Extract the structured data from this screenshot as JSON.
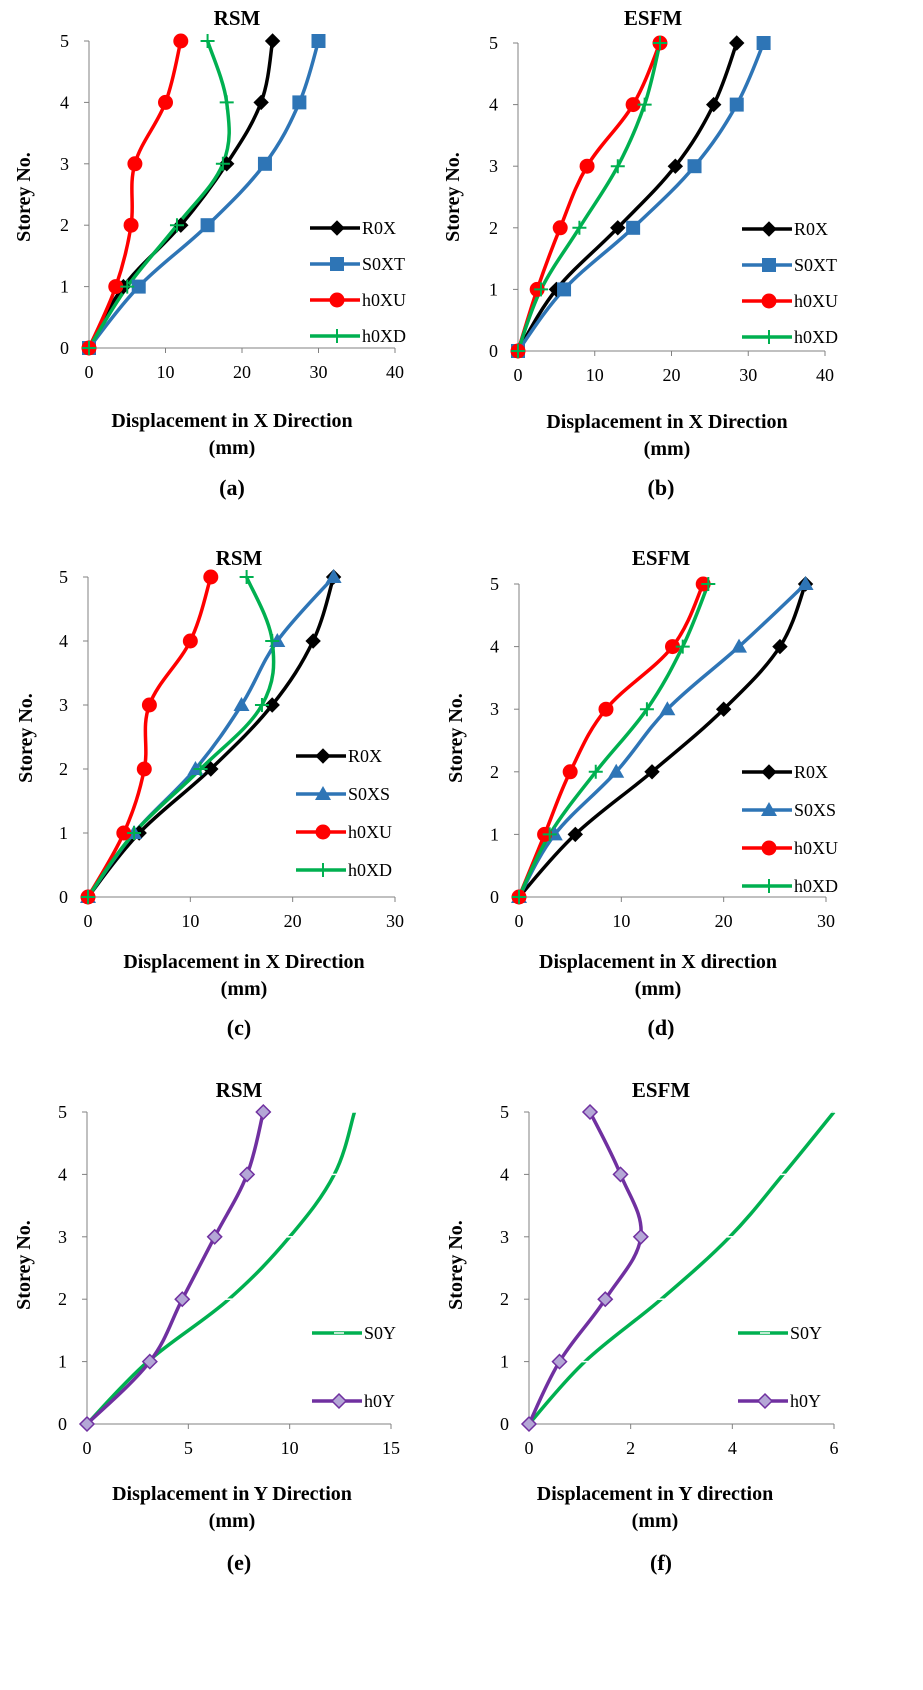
{
  "charts": [
    {
      "type": "line",
      "title": "RSM",
      "xlabel": [
        "Displacement in X Direction",
        "(mm)"
      ],
      "ylabel": "Storey No.",
      "caption": "(a)",
      "xlim": [
        0,
        40
      ],
      "xticks": [
        0,
        10,
        20,
        30,
        40
      ],
      "ylim": [
        0,
        5
      ],
      "yticks": [
        0,
        1,
        2,
        3,
        4,
        5
      ],
      "series": [
        {
          "name": "R0X",
          "color": "#000000",
          "marker": "diamond",
          "x": [
            0,
            4.5,
            12,
            18,
            22.5,
            24
          ],
          "y": [
            0,
            1,
            2,
            3,
            4,
            5
          ]
        },
        {
          "name": "S0XT",
          "color": "#2E75B6",
          "marker": "square",
          "x": [
            0,
            6.5,
            15.5,
            23,
            27.5,
            30
          ],
          "y": [
            0,
            1,
            2,
            3,
            4,
            5
          ]
        },
        {
          "name": "h0XU",
          "color": "#FF0000",
          "marker": "circle",
          "x": [
            0,
            3.5,
            5.5,
            6,
            10,
            12
          ],
          "y": [
            0,
            1,
            2,
            3,
            4,
            5
          ]
        },
        {
          "name": "h0XD",
          "color": "#00B050",
          "marker": "plus",
          "x": [
            0,
            5,
            11.5,
            17.5,
            18,
            15.5
          ],
          "y": [
            0,
            1,
            2,
            3,
            4,
            5
          ]
        }
      ]
    },
    {
      "type": "line",
      "title": "ESFM",
      "xlabel": [
        "Displacement in X Direction",
        "(mm)"
      ],
      "ylabel": "Storey No.",
      "caption": "(b)",
      "xlim": [
        0,
        40
      ],
      "xticks": [
        0,
        10,
        20,
        30,
        40
      ],
      "ylim": [
        0,
        5
      ],
      "yticks": [
        0,
        1,
        2,
        3,
        4,
        5
      ],
      "series": [
        {
          "name": "R0X",
          "color": "#000000",
          "marker": "diamond",
          "x": [
            0,
            5,
            13,
            20.5,
            25.5,
            28.5
          ],
          "y": [
            0,
            1,
            2,
            3,
            4,
            5
          ]
        },
        {
          "name": "S0XT",
          "color": "#2E75B6",
          "marker": "square",
          "x": [
            0,
            6,
            15,
            23,
            28.5,
            32
          ],
          "y": [
            0,
            1,
            2,
            3,
            4,
            5
          ]
        },
        {
          "name": "h0XU",
          "color": "#FF0000",
          "marker": "circle",
          "x": [
            0,
            2.5,
            5.5,
            9,
            15,
            18.5
          ],
          "y": [
            0,
            1,
            2,
            3,
            4,
            5
          ]
        },
        {
          "name": "h0XD",
          "color": "#00B050",
          "marker": "plus",
          "x": [
            0,
            3,
            8,
            13,
            16.5,
            18.5
          ],
          "y": [
            0,
            1,
            2,
            3,
            4,
            5
          ]
        }
      ]
    },
    {
      "type": "line",
      "title": "RSM",
      "xlabel": [
        "Displacement in X Direction",
        "(mm)"
      ],
      "ylabel": "Storey No.",
      "caption": "(c)",
      "xlim": [
        0,
        30
      ],
      "xticks": [
        0,
        10,
        20,
        30
      ],
      "ylim": [
        0,
        5
      ],
      "yticks": [
        0,
        1,
        2,
        3,
        4,
        5
      ],
      "series": [
        {
          "name": "R0X",
          "color": "#000000",
          "marker": "diamond",
          "x": [
            0,
            5,
            12,
            18,
            22,
            24
          ],
          "y": [
            0,
            1,
            2,
            3,
            4,
            5
          ]
        },
        {
          "name": "S0XS",
          "color": "#2E75B6",
          "marker": "triangle",
          "x": [
            0,
            4.5,
            10.5,
            15,
            18.5,
            24
          ],
          "y": [
            0,
            1,
            2,
            3,
            4,
            5
          ]
        },
        {
          "name": "h0XU",
          "color": "#FF0000",
          "marker": "circle",
          "x": [
            0,
            3.5,
            5.5,
            6,
            10,
            12
          ],
          "y": [
            0,
            1,
            2,
            3,
            4,
            5
          ]
        },
        {
          "name": "h0XD",
          "color": "#00B050",
          "marker": "plus",
          "x": [
            0,
            4.5,
            11,
            17,
            18,
            15.5
          ],
          "y": [
            0,
            1,
            2,
            3,
            4,
            5
          ]
        }
      ]
    },
    {
      "type": "line",
      "title": "ESFM",
      "xlabel": [
        "Displacement in X direction",
        "(mm)"
      ],
      "ylabel": "Storey No.",
      "caption": "(d)",
      "xlim": [
        0,
        30
      ],
      "xticks": [
        0,
        10,
        20,
        30
      ],
      "ylim": [
        0,
        5
      ],
      "yticks": [
        0,
        1,
        2,
        3,
        4,
        5
      ],
      "series": [
        {
          "name": "R0X",
          "color": "#000000",
          "marker": "diamond",
          "x": [
            0,
            5.5,
            13,
            20,
            25.5,
            28
          ],
          "y": [
            0,
            1,
            2,
            3,
            4,
            5
          ]
        },
        {
          "name": "S0XS",
          "color": "#2E75B6",
          "marker": "triangle",
          "x": [
            0,
            3.5,
            9.5,
            14.5,
            21.5,
            28
          ],
          "y": [
            0,
            1,
            2,
            3,
            4,
            5
          ]
        },
        {
          "name": "h0XU",
          "color": "#FF0000",
          "marker": "circle",
          "x": [
            0,
            2.5,
            5,
            8.5,
            15,
            18
          ],
          "y": [
            0,
            1,
            2,
            3,
            4,
            5
          ]
        },
        {
          "name": "h0XD",
          "color": "#00B050",
          "marker": "plus",
          "x": [
            0,
            3,
            7.5,
            12.5,
            16,
            18.5
          ],
          "y": [
            0,
            1,
            2,
            3,
            4,
            5
          ]
        }
      ]
    },
    {
      "type": "line",
      "title": "RSM",
      "xlabel": [
        "Displacement in Y Direction",
        "(mm)"
      ],
      "ylabel": "Storey No.",
      "caption": "(e)",
      "xlim": [
        0,
        15
      ],
      "xticks": [
        0,
        5,
        10,
        15
      ],
      "ylim": [
        0,
        5
      ],
      "yticks": [
        0,
        1,
        2,
        3,
        4,
        5
      ],
      "series": [
        {
          "name": "S0Y",
          "color": "#00B050",
          "marker": "dash",
          "x": [
            0,
            3,
            7,
            10,
            12.2,
            13.2
          ],
          "y": [
            0,
            1,
            2,
            3,
            4,
            5
          ]
        },
        {
          "name": "h0Y",
          "color": "#7030A0",
          "marker": "diamond-light",
          "x": [
            0,
            3.1,
            4.7,
            6.3,
            7.9,
            8.7
          ],
          "y": [
            0,
            1,
            2,
            3,
            4,
            5
          ]
        }
      ]
    },
    {
      "type": "line",
      "title": "ESFM",
      "xlabel": [
        "Displacement in Y direction",
        "(mm)"
      ],
      "ylabel": "Storey No.",
      "caption": "(f)",
      "xlim": [
        0,
        6
      ],
      "xticks": [
        0,
        2,
        4,
        6
      ],
      "ylim": [
        0,
        5
      ],
      "yticks": [
        0,
        1,
        2,
        3,
        4,
        5
      ],
      "series": [
        {
          "name": "S0Y",
          "color": "#00B050",
          "marker": "dash",
          "x": [
            0,
            1.1,
            2.6,
            3.95,
            5,
            6
          ],
          "y": [
            0,
            1,
            2,
            3,
            4,
            5
          ]
        },
        {
          "name": "h0Y",
          "color": "#7030A0",
          "marker": "diamond-light",
          "x": [
            0,
            0.6,
            1.5,
            2.2,
            1.8,
            1.2
          ],
          "y": [
            0,
            1,
            2,
            3,
            4,
            5
          ]
        }
      ]
    }
  ]
}
